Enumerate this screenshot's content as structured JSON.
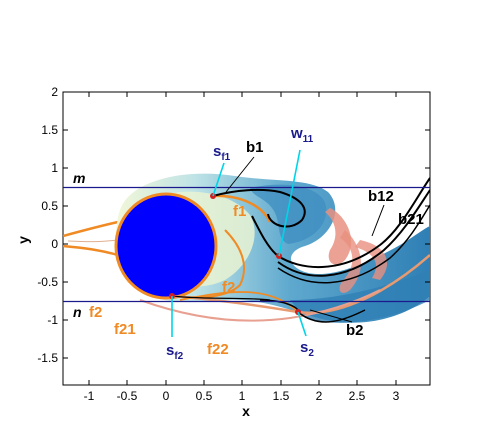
{
  "axes": {
    "xlabel": "x",
    "ylabel": "y",
    "xlim": [
      -1.35,
      3.45
    ],
    "ylim": [
      -1.85,
      2.0
    ],
    "xticks": [
      "-1",
      "-0.5",
      "0",
      "0.5",
      "1",
      "1.5",
      "2",
      "2.5",
      "3"
    ],
    "yticks": [
      "2",
      "1.5",
      "1",
      "0.5",
      "0",
      "-0.5",
      "-1",
      "-1.5"
    ]
  },
  "lines": {
    "m": {
      "label": "m",
      "y": 0.75
    },
    "n": {
      "label": "n",
      "y": -0.75
    }
  },
  "labels": {
    "s_f1": {
      "base": "s",
      "sub": "f1"
    },
    "b1": "b1",
    "w_11": {
      "base": "w",
      "sub": "11"
    },
    "f1": "f1",
    "f2_mid": "f2",
    "b12": "b12",
    "b21": "b21",
    "b2": "b2",
    "f2_left": "f2",
    "f21": "f21",
    "s_f2": {
      "base": "s",
      "sub": "f2"
    },
    "f22": "f22",
    "s_2": {
      "base": "s",
      "sub": "2"
    }
  },
  "colors": {
    "navy": "#1a1a8c",
    "orange": "#f08a24",
    "cyan": "#00d5e8",
    "cylinder": "#0000ff",
    "wake_dark": "#2f84b8",
    "wake_light": "#cfe9ef",
    "frame": "#000000"
  }
}
